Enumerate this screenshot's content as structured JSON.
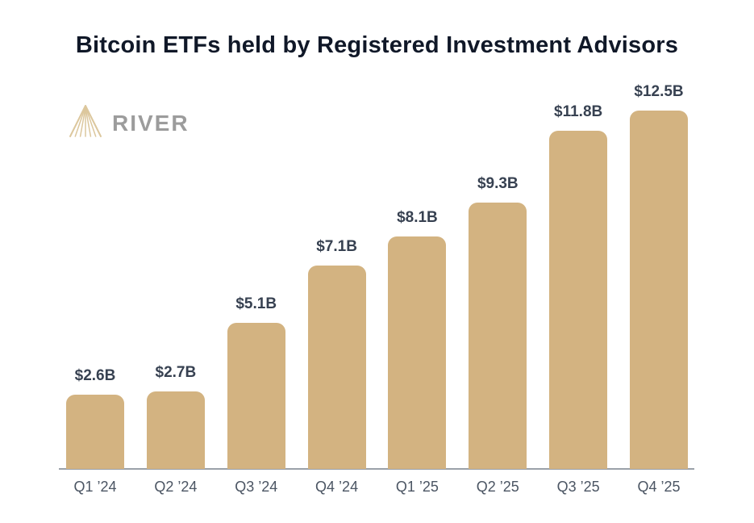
{
  "header": {
    "title": "Bitcoin ETFs held by Registered Investment Advisors"
  },
  "branding": {
    "name": "RIVER",
    "icon": "river-mountain-logo-icon",
    "icon_color": "#dcc79d",
    "text_color": "#9c9c9c"
  },
  "colors": {
    "bar": "#d3b381",
    "title": "#101828",
    "value_label": "#374151",
    "tick_label": "#4b5563",
    "axis_line": "#9aa1a9",
    "background": "#ffffff"
  },
  "chart_data": {
    "type": "bar",
    "title": "Bitcoin ETFs held by Registered Investment Advisors",
    "categories": [
      "Q1 ’24",
      "Q2 ’24",
      "Q3 ’24",
      "Q4 ’24",
      "Q1 ’25",
      "Q2 ’25",
      "Q3 ’25",
      "Q4 ’25"
    ],
    "values": [
      2.6,
      2.7,
      5.1,
      7.1,
      8.1,
      9.3,
      11.8,
      12.5
    ],
    "value_labels": [
      "$2.6B",
      "$2.7B",
      "$5.1B",
      "$7.1B",
      "$8.1B",
      "$9.3B",
      "$11.8B",
      "$12.5B"
    ],
    "xlabel": "",
    "ylabel": "",
    "ylim": [
      0,
      13.5
    ],
    "grid": false,
    "legend": "none",
    "bar_color": "#d3b381"
  }
}
